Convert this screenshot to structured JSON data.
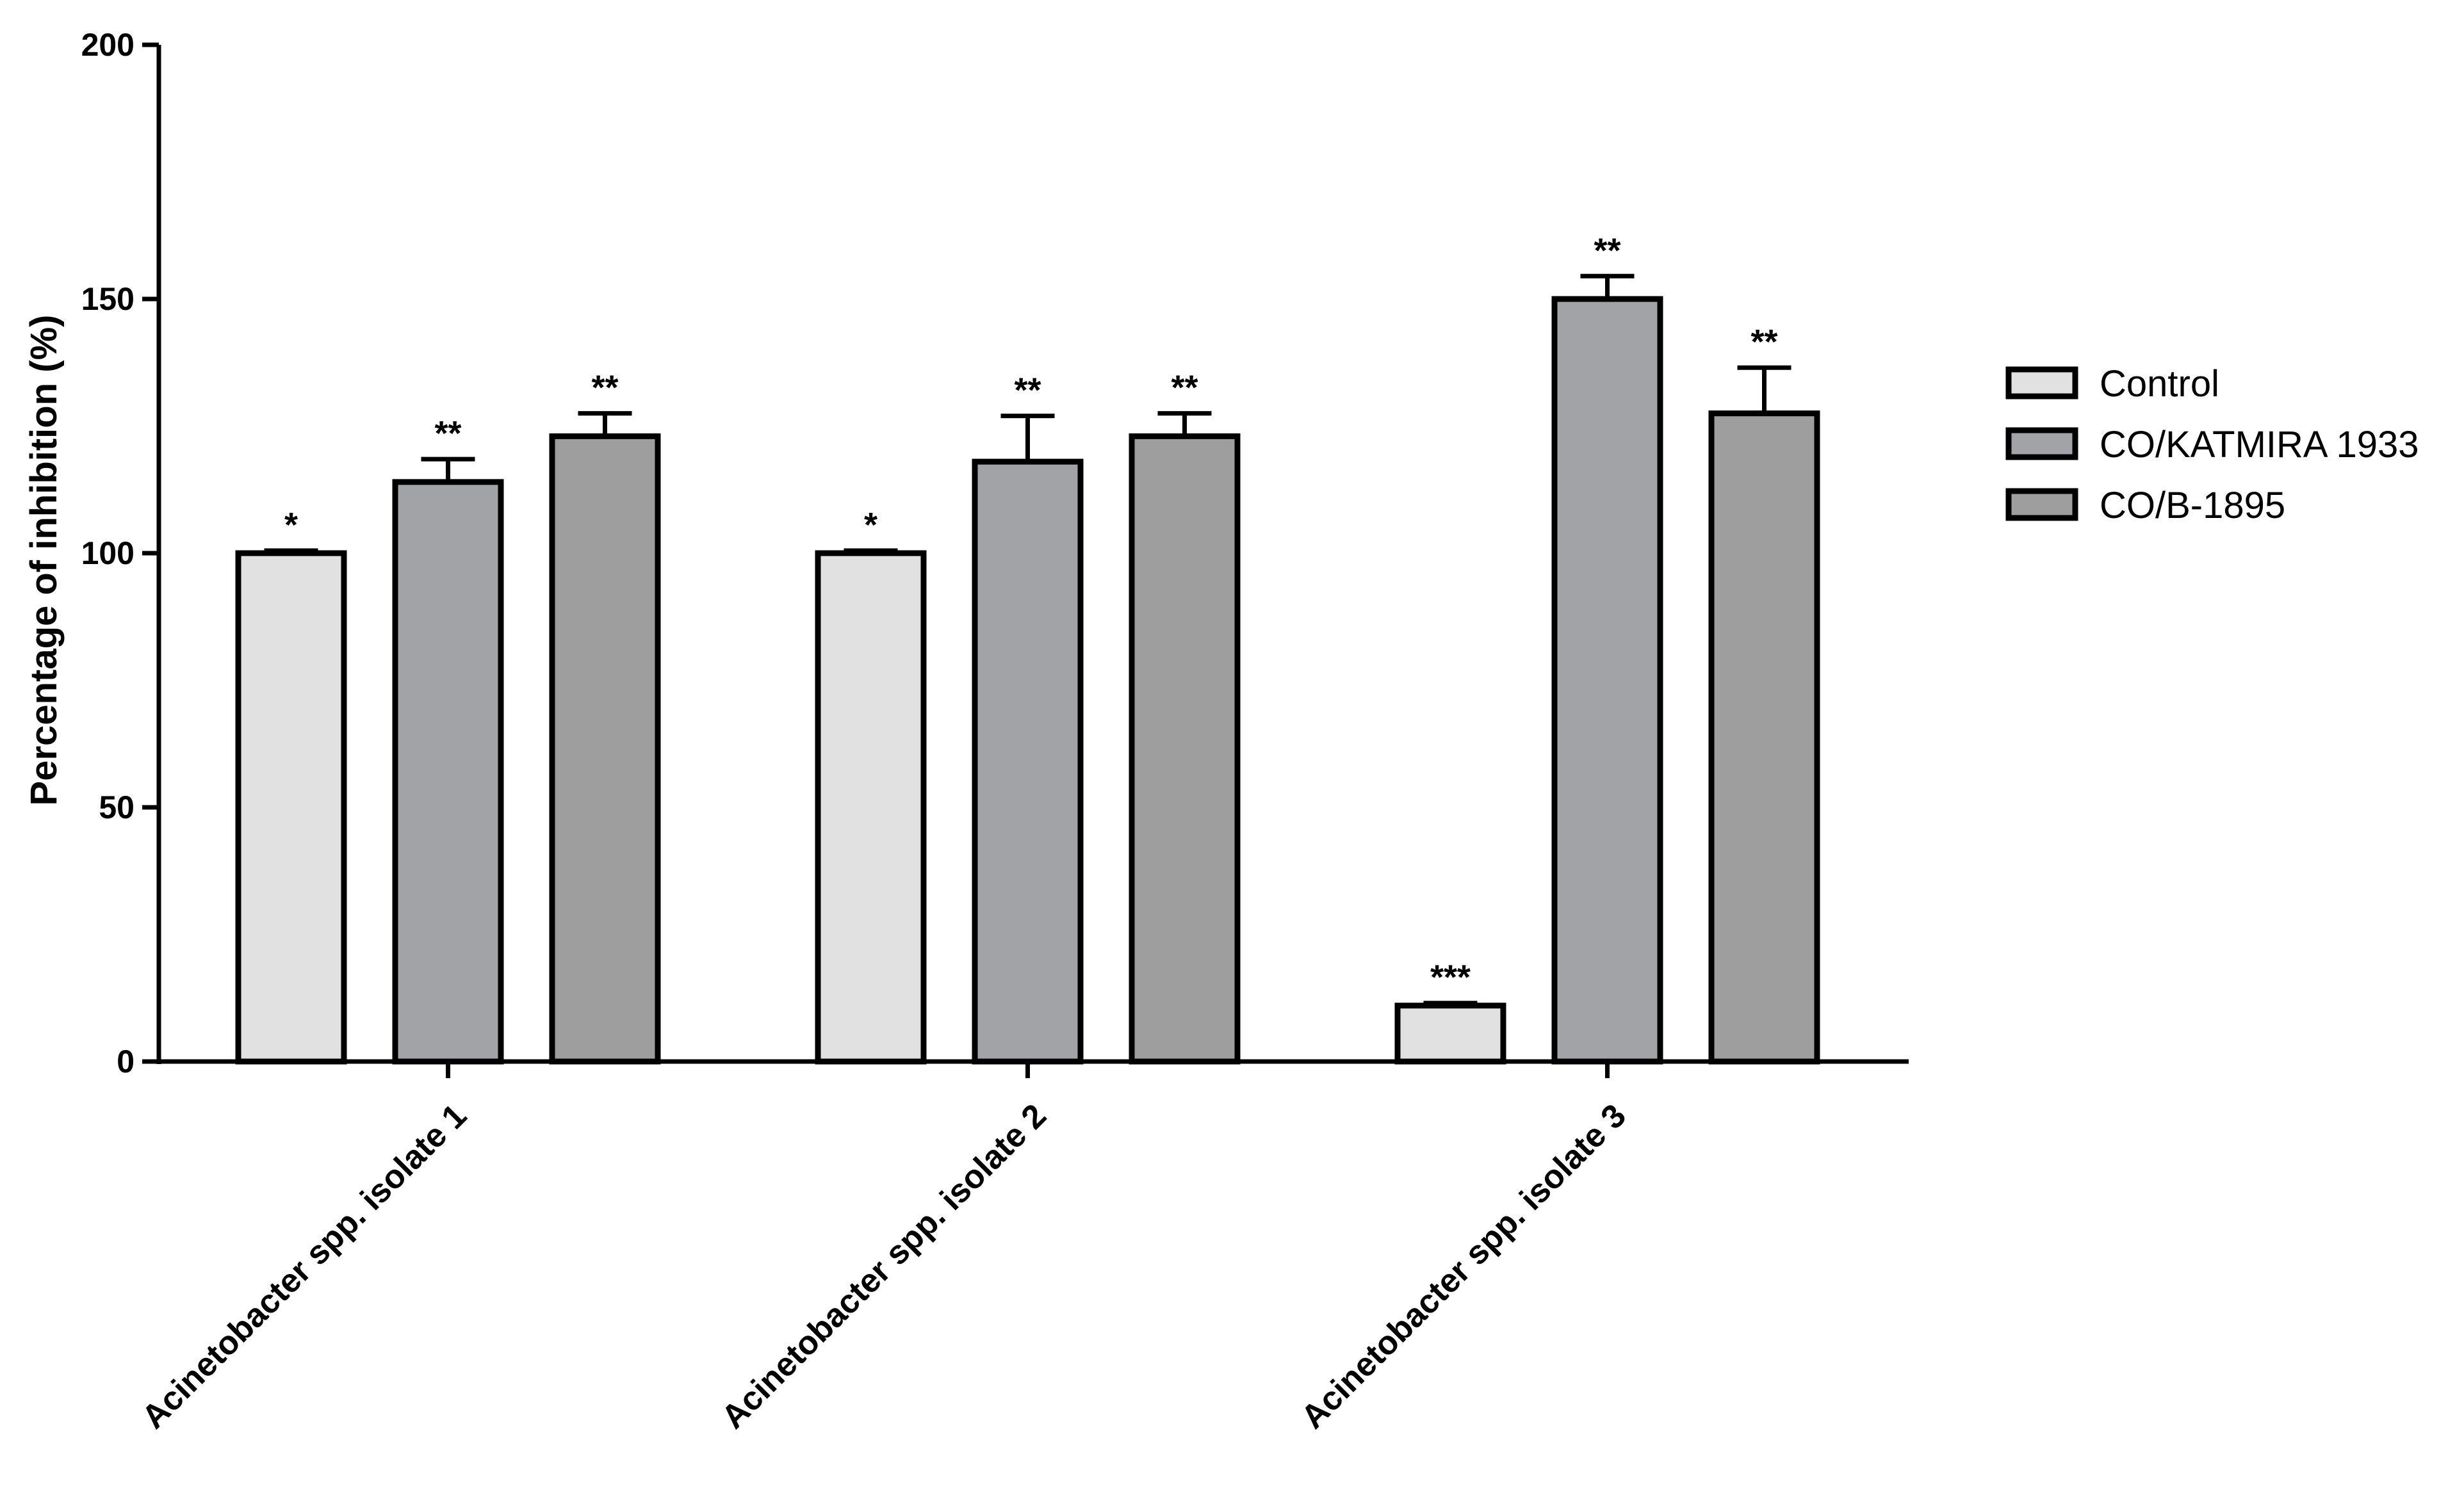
{
  "chart_data": {
    "type": "bar",
    "title": "",
    "xlabel": "",
    "ylabel": "Percentage of inhibition (%)",
    "ylim": [
      0,
      200
    ],
    "yticks": [
      0,
      50,
      100,
      150,
      200
    ],
    "grid": false,
    "legend_position": "right",
    "categories": [
      "Acinetobacter spp. isolate 1",
      "Acinetobacter spp. isolate 2",
      "Acinetobacter spp. isolate 3"
    ],
    "series": [
      {
        "name": "Control",
        "color": "#e1e1e1",
        "values": [
          100,
          100,
          11
        ],
        "errors": [
          0.5,
          0.5,
          0.5
        ],
        "significance": [
          "*",
          "*",
          "***"
        ]
      },
      {
        "name": "CO/KATMIRA 1933",
        "color": "#a2a3a6",
        "values": [
          114,
          118,
          150
        ],
        "errors": [
          4.5,
          9,
          4.5
        ],
        "significance": [
          "**",
          "**",
          "**"
        ]
      },
      {
        "name": "CO/B-1895",
        "color": "#9e9e9e",
        "values": [
          123,
          123,
          127.5
        ],
        "errors": [
          4.5,
          4.5,
          9
        ],
        "significance": [
          "**",
          "**",
          "**"
        ]
      }
    ]
  }
}
